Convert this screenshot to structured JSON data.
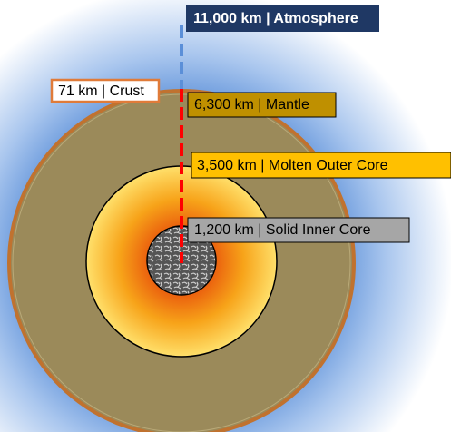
{
  "layers": [
    {
      "label": "11,000 km | Atmosphere"
    },
    {
      "label": "71 km | Crust"
    },
    {
      "label": "6,300 km | Mantle"
    },
    {
      "label": "3,500 km | Molten Outer Core"
    },
    {
      "label": "1,200 km | Solid Inner Core"
    }
  ]
}
